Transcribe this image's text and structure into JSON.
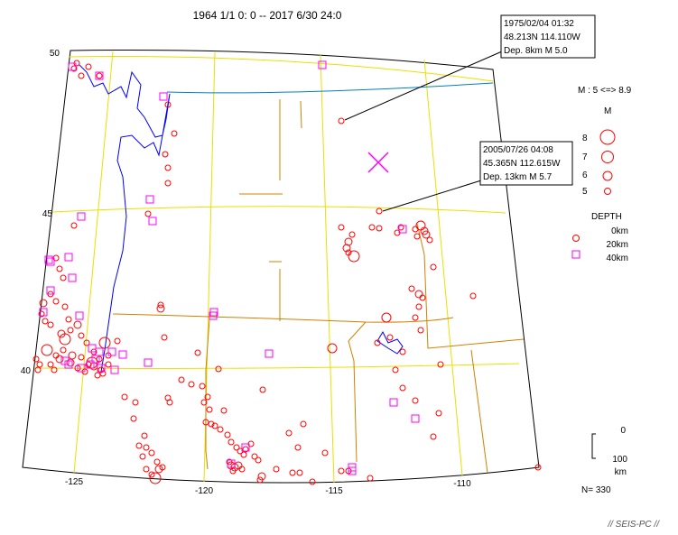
{
  "title": "1964 1/1 0: 0 -- 2017 6/30 24:0",
  "lat_labels": [
    "50",
    "45",
    "40"
  ],
  "lon_labels": [
    "-125",
    "-120",
    "-115",
    "-110"
  ],
  "callouts": [
    {
      "line1": "1975/02/04 01:32",
      "line2": "48.213N  114.110W",
      "line3": "Dep. 8km   M 5.0"
    },
    {
      "line1": "2005/07/26 04:08",
      "line2": "45.365N  112.615W",
      "line3": "Dep. 13km   M 5.7"
    }
  ],
  "legend": {
    "magnitude_range": "M : 5 <=> 8.9",
    "magnitude_title": "M",
    "magnitude_items": [
      "8",
      "7",
      "6",
      "5"
    ],
    "depth_title": "DEPTH",
    "depth_items": [
      "0km",
      "20km",
      "40km"
    ]
  },
  "scale": {
    "top": "0",
    "bottom": "100",
    "unit": "km"
  },
  "count": "N= 330",
  "credit": "// SEIS-PC //",
  "colors": {
    "quake": "#ff0000",
    "deep": "#ff00ff",
    "grid": "#e8e000",
    "border": "#d08000",
    "coast": "#0000ff",
    "canada_border": "#0080c0"
  }
}
